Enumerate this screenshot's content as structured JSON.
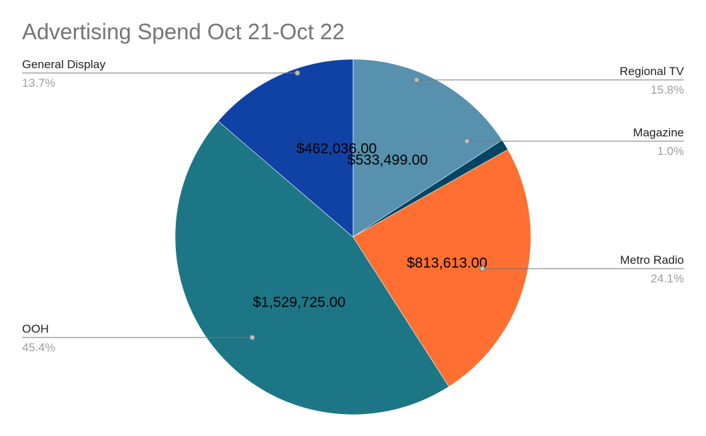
{
  "chart_data": {
    "type": "pie",
    "title": "Advertising Spend Oct 21-Oct 22",
    "slices": [
      {
        "name": "Regional TV",
        "value": 533499,
        "value_label": "$533,499.00",
        "percent_label": "15.8%",
        "color": "#5891ad",
        "callout_side": "right"
      },
      {
        "name": "Magazine",
        "value": 33750,
        "value_label": "",
        "percent_label": "1.0%",
        "color": "#004561",
        "callout_side": "right"
      },
      {
        "name": "Metro Radio",
        "value": 813613,
        "value_label": "$813,613.00",
        "percent_label": "24.1%",
        "color": "#ff6f31",
        "callout_side": "right"
      },
      {
        "name": "OOH",
        "value": 1529725,
        "value_label": "$1,529,725.00",
        "percent_label": "45.4%",
        "color": "#1c7685",
        "callout_side": "left"
      },
      {
        "name": "General Display",
        "value": 462036,
        "value_label": "$462,036.00",
        "percent_label": "13.7%",
        "color": "#0f42a4",
        "callout_side": "left"
      }
    ],
    "legend": "none",
    "start_angle": "12 o'clock",
    "direction": "clockwise"
  }
}
